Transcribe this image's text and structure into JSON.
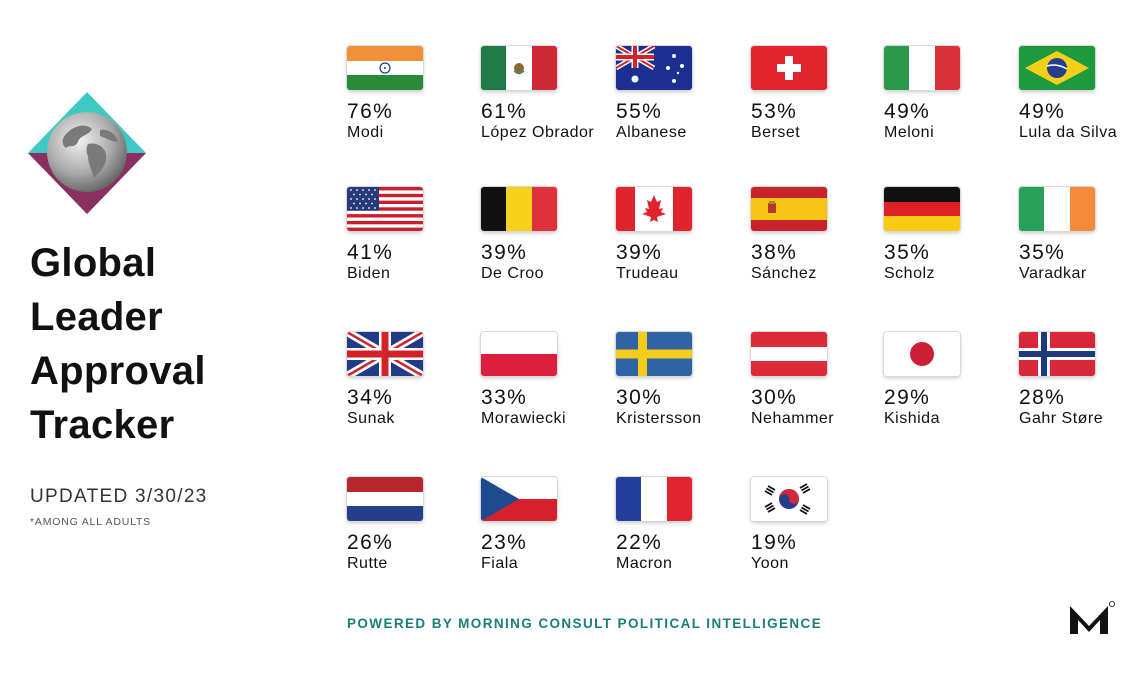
{
  "title_lines": [
    "Global",
    "Leader",
    "Approval",
    "Tracker"
  ],
  "updated": "UPDATED 3/30/23",
  "footnote": "*AMONG ALL ADULTS",
  "powered_by": "POWERED BY MORNING CONSULT POLITICAL INTELLIGENCE",
  "colors": {
    "accent_teal": "#1a7e78",
    "globe_teal": "#3ec9c3",
    "globe_purple": "#8a2f62",
    "text": "#111111"
  },
  "chart_data": {
    "type": "table",
    "title": "Global Leader Approval Tracker",
    "unit": "%",
    "leaders": [
      {
        "name": "Modi",
        "pct": "76%",
        "value": 76,
        "country": "India"
      },
      {
        "name": "López Obrador",
        "pct": "61%",
        "value": 61,
        "country": "Mexico"
      },
      {
        "name": "Albanese",
        "pct": "55%",
        "value": 55,
        "country": "Australia"
      },
      {
        "name": "Berset",
        "pct": "53%",
        "value": 53,
        "country": "Switzerland"
      },
      {
        "name": "Meloni",
        "pct": "49%",
        "value": 49,
        "country": "Italy"
      },
      {
        "name": "Lula da Silva",
        "pct": "49%",
        "value": 49,
        "country": "Brazil"
      },
      {
        "name": "Biden",
        "pct": "41%",
        "value": 41,
        "country": "United States"
      },
      {
        "name": "De Croo",
        "pct": "39%",
        "value": 39,
        "country": "Belgium"
      },
      {
        "name": "Trudeau",
        "pct": "39%",
        "value": 39,
        "country": "Canada"
      },
      {
        "name": "Sánchez",
        "pct": "38%",
        "value": 38,
        "country": "Spain"
      },
      {
        "name": "Scholz",
        "pct": "35%",
        "value": 35,
        "country": "Germany"
      },
      {
        "name": "Varadkar",
        "pct": "35%",
        "value": 35,
        "country": "Ireland"
      },
      {
        "name": "Sunak",
        "pct": "34%",
        "value": 34,
        "country": "United Kingdom"
      },
      {
        "name": "Morawiecki",
        "pct": "33%",
        "value": 33,
        "country": "Poland"
      },
      {
        "name": "Kristersson",
        "pct": "30%",
        "value": 30,
        "country": "Sweden"
      },
      {
        "name": "Nehammer",
        "pct": "30%",
        "value": 30,
        "country": "Austria"
      },
      {
        "name": "Kishida",
        "pct": "29%",
        "value": 29,
        "country": "Japan"
      },
      {
        "name": "Gahr Støre",
        "pct": "28%",
        "value": 28,
        "country": "Norway"
      },
      {
        "name": "Rutte",
        "pct": "26%",
        "value": 26,
        "country": "Netherlands"
      },
      {
        "name": "Fiala",
        "pct": "23%",
        "value": 23,
        "country": "Czech Republic"
      },
      {
        "name": "Macron",
        "pct": "22%",
        "value": 22,
        "country": "France"
      },
      {
        "name": "Yoon",
        "pct": "19%",
        "value": 19,
        "country": "South Korea"
      }
    ]
  }
}
